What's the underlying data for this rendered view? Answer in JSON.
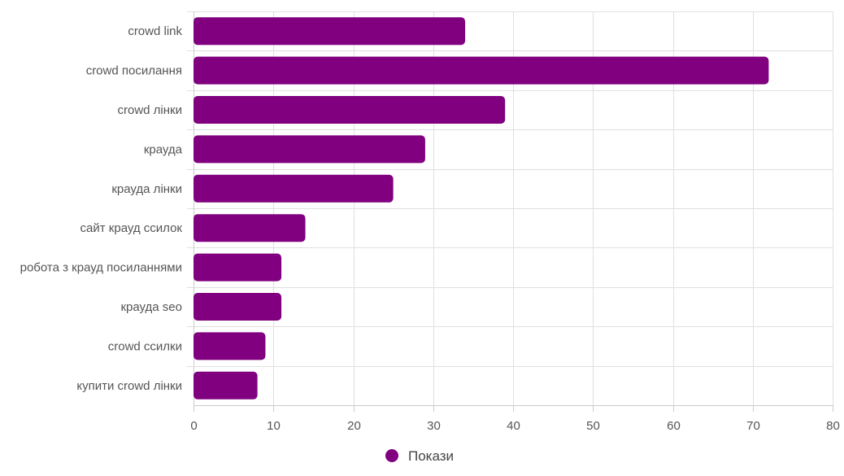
{
  "chart_data": {
    "type": "bar",
    "orientation": "horizontal",
    "categories": [
      "crowd link",
      "crowd посилання",
      "crowd лінки",
      "крауда",
      "крауда лінки",
      "сайт крауд ссилок",
      "робота з крауд посиланнями",
      "крауда seo",
      "crowd ссилки",
      "купити crowd лінки"
    ],
    "series": [
      {
        "name": "Покази",
        "color": "#800080",
        "values": [
          34,
          72,
          39,
          29,
          25,
          14,
          11,
          11,
          9,
          8
        ]
      }
    ],
    "xlim": [
      0,
      80
    ],
    "x_ticks": [
      "0",
      "10",
      "20",
      "30",
      "40",
      "50",
      "60",
      "70",
      "80"
    ],
    "grid": true,
    "legend_position": "bottom-center"
  }
}
